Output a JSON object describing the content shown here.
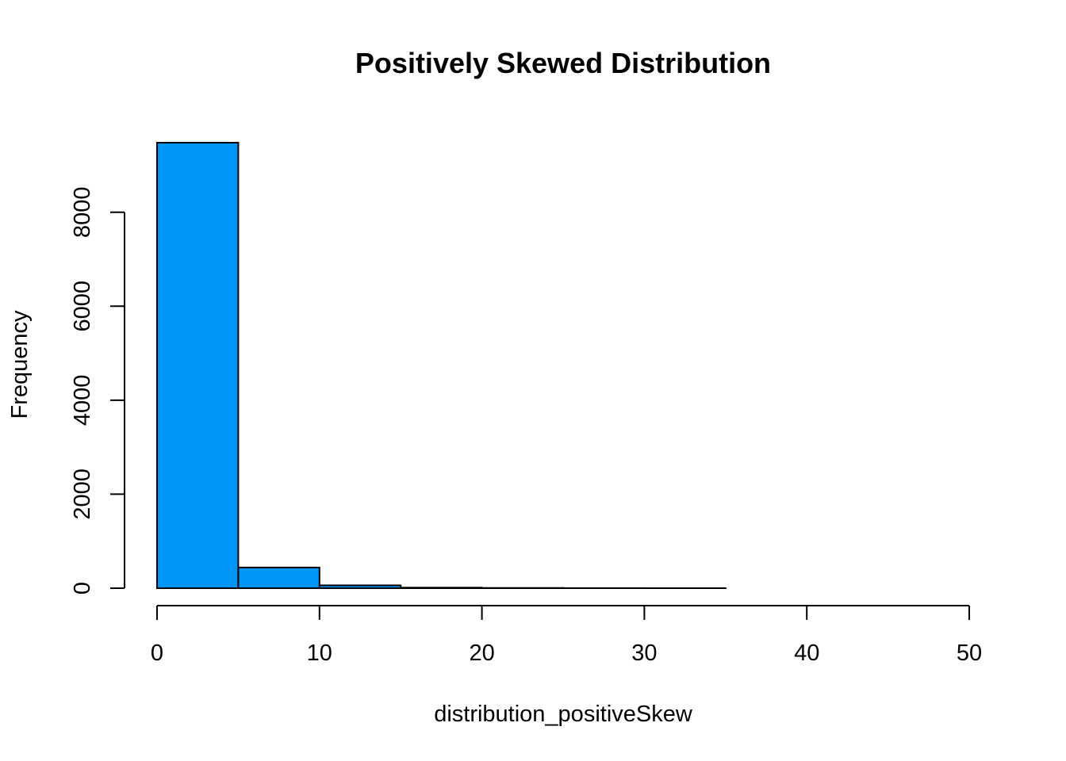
{
  "chart_data": {
    "type": "bar",
    "subtype": "histogram",
    "title": "Positively Skewed Distribution",
    "xlabel": "distribution_positiveSkew",
    "ylabel": "Frequency",
    "bin_edges": [
      0,
      5,
      10,
      15,
      20,
      25,
      30,
      35,
      40,
      45,
      50
    ],
    "values": [
      9480,
      440,
      60,
      12,
      5,
      2,
      1,
      0,
      0,
      0
    ],
    "xlim": [
      0,
      50
    ],
    "ylim": [
      0,
      9480
    ],
    "x_ticks": [
      0,
      10,
      20,
      30,
      40,
      50
    ],
    "x_tick_labels": [
      "0",
      "10",
      "20",
      "30",
      "40",
      "50"
    ],
    "y_ticks": [
      0,
      2000,
      4000,
      6000,
      8000
    ],
    "y_tick_labels": [
      "0",
      "2000",
      "4000",
      "6000",
      "8000"
    ],
    "bar_color": "#0096F8",
    "bar_edge_color": "#000000",
    "grid": false,
    "legend": "none"
  }
}
